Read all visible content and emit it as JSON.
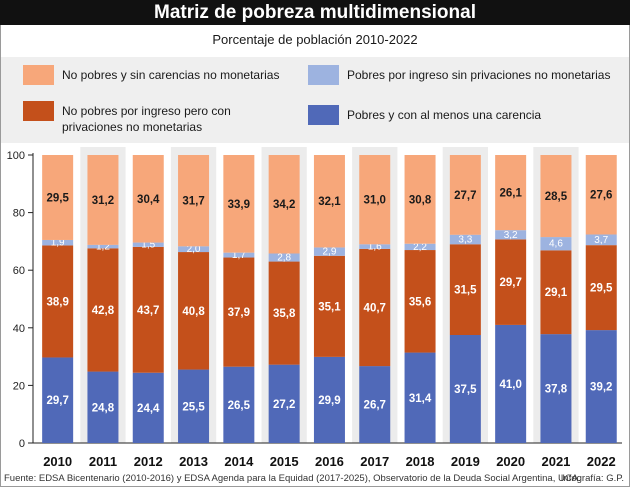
{
  "header": {
    "title": "Matriz de pobreza multidimensional",
    "subtitle": "Porcentaje de población 2010-2022"
  },
  "legend": [
    {
      "label": "No pobres y sin carencias no monetarias",
      "color": "#f7a77a"
    },
    {
      "label": "Pobres por ingreso sin privaciones no monetarias",
      "color": "#9db3e0"
    },
    {
      "label": "No pobres por ingreso pero con privaciones no monetarias",
      "color": "#c4501b"
    },
    {
      "label": "Pobres y con al menos una carencia",
      "color": "#5069b8"
    }
  ],
  "chart_data": {
    "type": "bar",
    "stacked": true,
    "title": "Matriz de pobreza multidimensional",
    "subtitle": "Porcentaje de población 2010-2022",
    "categories": [
      "2010",
      "2011",
      "2012",
      "2013",
      "2014",
      "2015",
      "2016",
      "2017",
      "2018",
      "2019",
      "2020",
      "2021",
      "2022"
    ],
    "ylim": [
      0,
      100
    ],
    "yticks": [
      "0",
      "20",
      "40",
      "60",
      "80",
      "100"
    ],
    "grid": false,
    "series": [
      {
        "name": "Pobres y con al menos una carencia",
        "color": "#5069b8",
        "values": [
          29.7,
          24.8,
          24.4,
          25.5,
          26.5,
          27.2,
          29.9,
          26.7,
          31.4,
          37.5,
          41.0,
          37.8,
          39.2
        ],
        "labels": [
          "29,7",
          "24,8",
          "24,4",
          "25,5",
          "26,5",
          "27,2",
          "29,9",
          "26,7",
          "31,4",
          "37,5",
          "41,0",
          "37,8",
          "39,2"
        ]
      },
      {
        "name": "No pobres por ingreso pero con privaciones no monetarias",
        "color": "#c4501b",
        "values": [
          38.9,
          42.8,
          43.7,
          40.8,
          37.9,
          35.8,
          35.1,
          40.7,
          35.6,
          31.5,
          29.7,
          29.1,
          29.5
        ],
        "labels": [
          "38,9",
          "42,8",
          "43,7",
          "40,8",
          "37,9",
          "35,8",
          "35,1",
          "40,7",
          "35,6",
          "31,5",
          "29,7",
          "29,1",
          "29,5"
        ]
      },
      {
        "name": "Pobres por ingreso sin privaciones no monetarias",
        "color": "#9db3e0",
        "values": [
          1.9,
          1.2,
          1.5,
          2.0,
          1.7,
          2.8,
          2.9,
          1.6,
          2.2,
          3.3,
          3.2,
          4.6,
          3.7
        ],
        "labels": [
          "1,9",
          "1,2",
          "1,5",
          "2,0",
          "1,7",
          "2,8",
          "2,9",
          "1,6",
          "2,2",
          "3,3",
          "3,2",
          "4,6",
          "3,7"
        ]
      },
      {
        "name": "No pobres y sin carencias no monetarias",
        "color": "#f7a77a",
        "values": [
          29.5,
          31.2,
          30.4,
          31.7,
          33.9,
          34.2,
          32.1,
          31.0,
          30.8,
          27.7,
          26.1,
          28.5,
          27.6
        ],
        "labels": [
          "29,5",
          "31,2",
          "30,4",
          "31,7",
          "33,9",
          "34,2",
          "32,1",
          "31,0",
          "30,8",
          "27,7",
          "26,1",
          "28,5",
          "27,6"
        ]
      }
    ]
  },
  "footer": {
    "source": "Fuente: EDSA Bicentenario (2010-2016) y EDSA Agenda para la Equidad (2017-2025), Observatorio de la Deuda Social Argentina, UCA.",
    "credit": "Infografía: G.P."
  }
}
